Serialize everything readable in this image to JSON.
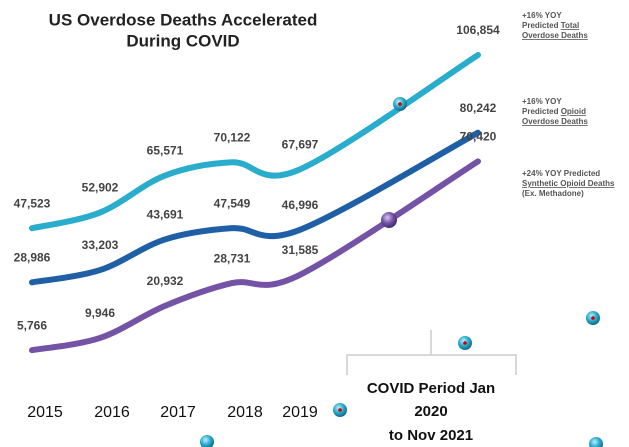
{
  "chart_data": {
    "type": "line",
    "title_lines": [
      "US Overdose Deaths Accelerated",
      "During COVID"
    ],
    "categories": [
      "2015",
      "2016",
      "2017",
      "2018",
      "2019",
      null
    ],
    "series": [
      {
        "name": "Total Overdose Deaths",
        "color": "#2aaccc",
        "values": [
          47523,
          52902,
          65571,
          70122,
          67697,
          106854
        ],
        "value_labels": [
          "47,523",
          "52,902",
          "65,571",
          "70,122",
          "67,697",
          "106,854"
        ]
      },
      {
        "name": "Opioid Overdose Deaths",
        "color": "#1f5fa6",
        "values": [
          28986,
          33203,
          43691,
          47549,
          46996,
          80242
        ],
        "value_labels": [
          "28,986",
          "33,203",
          "43,691",
          "47,549",
          "46,996",
          "80,242"
        ]
      },
      {
        "name": "Synthetic Opioid Deaths",
        "color": "#7453a6",
        "values": [
          5766,
          9946,
          20932,
          28731,
          31585,
          70420
        ],
        "value_labels": [
          "5,766",
          "9,946",
          "20,932",
          "28,731",
          "31,585",
          "70,420"
        ]
      }
    ],
    "annotations": [
      [
        [
          {
            "text": "+16% YOY",
            "underline": false
          }
        ],
        [
          {
            "text": "Predicted ",
            "underline": false
          },
          {
            "text": "Total",
            "underline": true
          }
        ],
        [
          {
            "text": "Overdose Deaths",
            "underline": true
          }
        ]
      ],
      [
        [
          {
            "text": "+16% YOY",
            "underline": false
          }
        ],
        [
          {
            "text": "Predicted ",
            "underline": false
          },
          {
            "text": "Opioid",
            "underline": true
          }
        ],
        [
          {
            "text": "Overdose Deaths",
            "underline": true
          }
        ]
      ],
      [
        [
          {
            "text": "+24% YOY Predicted",
            "underline": false
          }
        ],
        [
          {
            "text": "Synthetic Opioid Deaths",
            "underline": true
          }
        ],
        [
          {
            "text": "(Ex. Methadone)",
            "underline": false
          }
        ]
      ]
    ],
    "covid_label": [
      "COVID Period Jan",
      "2020",
      "to Nov 2021"
    ]
  }
}
